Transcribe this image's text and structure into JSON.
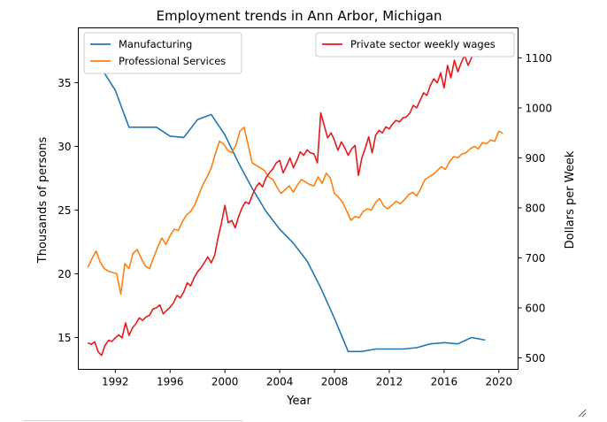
{
  "chart_data": {
    "type": "line",
    "title": "Employment trends in Ann Arbor, Michigan",
    "xlabel": "Year",
    "ylabel_left": "Thousands of persons",
    "ylabel_right": "Dollars per Week",
    "xlim": [
      1989.3,
      2021.4
    ],
    "ylim_left": [
      12.5,
      39.3
    ],
    "ylim_right": [
      477,
      1160
    ],
    "x_ticks": [
      1992,
      1996,
      2000,
      2004,
      2008,
      2012,
      2016,
      2020
    ],
    "y_ticks_left": [
      15,
      20,
      25,
      30,
      35
    ],
    "y_ticks_right": [
      500,
      600,
      700,
      800,
      900,
      1000,
      1100
    ],
    "grid": false,
    "legend_left_placement": "upper-left",
    "legend_right_placement": "upper-right",
    "series": [
      {
        "name": "Manufacturing",
        "axis": "left",
        "color": "#1f77b4",
        "x": [
          1990,
          1991,
          1992,
          1993,
          1994,
          1995,
          1996,
          1997,
          1998,
          1999,
          2000,
          2001,
          2002,
          2003,
          2004,
          2005,
          2006,
          2007,
          2008,
          2009,
          2010,
          2011,
          2012,
          2013,
          2014,
          2015,
          2016,
          2017,
          2018,
          2019
        ],
        "y": [
          37.6,
          36.1,
          34.4,
          31.5,
          31.5,
          31.5,
          30.8,
          30.7,
          32.1,
          32.5,
          30.9,
          28.7,
          26.7,
          24.9,
          23.5,
          22.4,
          21.0,
          18.9,
          16.5,
          13.9,
          13.9,
          14.1,
          14.1,
          14.1,
          14.2,
          14.5,
          14.6,
          14.5,
          15.0,
          14.8
        ]
      },
      {
        "name": "Professional Services",
        "axis": "left",
        "color": "#ff7f0e",
        "x": [
          1990.0,
          1990.3,
          1990.6,
          1990.9,
          1991.2,
          1991.5,
          1991.8,
          1992.1,
          1992.4,
          1992.7,
          1993.0,
          1993.3,
          1993.6,
          1993.9,
          1994.2,
          1994.5,
          1994.8,
          1995.1,
          1995.4,
          1995.7,
          1996.0,
          1996.3,
          1996.6,
          1996.9,
          1997.2,
          1997.5,
          1997.8,
          1998.1,
          1998.4,
          1998.7,
          1999.0,
          1999.3,
          1999.6,
          1999.9,
          2000.2,
          2000.5,
          2000.8,
          2001.1,
          2001.4,
          2001.7,
          2002.0,
          2002.3,
          2002.6,
          2002.9,
          2003.2,
          2003.5,
          2003.8,
          2004.1,
          2004.4,
          2004.7,
          2005.0,
          2005.3,
          2005.6,
          2005.9,
          2006.2,
          2006.5,
          2006.8,
          2007.1,
          2007.4,
          2007.7,
          2008.0,
          2008.3,
          2008.6,
          2008.9,
          2009.2,
          2009.5,
          2009.8,
          2010.1,
          2010.4,
          2010.7,
          2011.0,
          2011.3,
          2011.6,
          2011.9,
          2012.2,
          2012.5,
          2012.8,
          2013.1,
          2013.4,
          2013.7,
          2014.0,
          2014.3,
          2014.6,
          2014.9,
          2015.2,
          2015.5,
          2015.8,
          2016.1,
          2016.4,
          2016.7,
          2017.0,
          2017.3,
          2017.6,
          2017.9,
          2018.2,
          2018.5,
          2018.8,
          2019.1,
          2019.4,
          2019.7,
          2020.0,
          2020.3
        ],
        "y": [
          20.5,
          21.2,
          21.8,
          20.9,
          20.4,
          20.2,
          20.1,
          20.0,
          18.4,
          20.8,
          20.4,
          21.6,
          21.9,
          21.2,
          20.6,
          20.4,
          21.3,
          22.1,
          22.8,
          22.3,
          23.0,
          23.5,
          23.4,
          24.1,
          24.6,
          24.9,
          25.4,
          26.2,
          27.0,
          27.6,
          28.3,
          29.4,
          30.4,
          30.2,
          29.7,
          29.5,
          30.1,
          31.2,
          31.5,
          30.1,
          28.7,
          28.5,
          28.3,
          28.1,
          27.6,
          27.4,
          26.8,
          26.3,
          26.6,
          26.9,
          26.4,
          27.0,
          27.4,
          27.2,
          27.0,
          26.9,
          27.6,
          27.1,
          27.9,
          27.5,
          26.3,
          26.0,
          25.6,
          24.9,
          24.2,
          24.5,
          24.4,
          24.9,
          25.1,
          25.0,
          25.6,
          25.9,
          25.3,
          25.1,
          25.4,
          25.7,
          25.5,
          25.8,
          26.2,
          26.4,
          26.1,
          26.7,
          27.4,
          27.6,
          27.8,
          28.1,
          28.4,
          28.2,
          28.8,
          29.2,
          29.1,
          29.4,
          29.5,
          29.8,
          30.0,
          29.8,
          30.3,
          30.2,
          30.5,
          30.4,
          31.2,
          31.0
        ]
      },
      {
        "name": "Private sector weekly wages",
        "axis": "right",
        "color": "#e41a1c",
        "x": [
          1990.0,
          1990.25,
          1990.5,
          1990.75,
          1991.0,
          1991.25,
          1991.5,
          1991.75,
          1992.0,
          1992.25,
          1992.5,
          1992.75,
          1993.0,
          1993.25,
          1993.5,
          1993.75,
          1994.0,
          1994.25,
          1994.5,
          1994.75,
          1995.0,
          1995.25,
          1995.5,
          1995.75,
          1996.0,
          1996.25,
          1996.5,
          1996.75,
          1997.0,
          1997.25,
          1997.5,
          1997.75,
          1998.0,
          1998.25,
          1998.5,
          1998.75,
          1999.0,
          1999.25,
          1999.5,
          1999.75,
          2000.0,
          2000.25,
          2000.5,
          2000.75,
          2001.0,
          2001.25,
          2001.5,
          2001.75,
          2002.0,
          2002.25,
          2002.5,
          2002.75,
          2003.0,
          2003.25,
          2003.5,
          2003.75,
          2004.0,
          2004.25,
          2004.5,
          2004.75,
          2005.0,
          2005.25,
          2005.5,
          2005.75,
          2006.0,
          2006.25,
          2006.5,
          2006.75,
          2007.0,
          2007.25,
          2007.5,
          2007.75,
          2008.0,
          2008.25,
          2008.5,
          2008.75,
          2009.0,
          2009.25,
          2009.5,
          2009.75,
          2010.0,
          2010.25,
          2010.5,
          2010.75,
          2011.0,
          2011.25,
          2011.5,
          2011.75,
          2012.0,
          2012.25,
          2012.5,
          2012.75,
          2013.0,
          2013.25,
          2013.5,
          2013.75,
          2014.0,
          2014.25,
          2014.5,
          2014.75,
          2015.0,
          2015.25,
          2015.5,
          2015.75,
          2016.0,
          2016.25,
          2016.5,
          2016.75,
          2017.0,
          2017.25,
          2017.5,
          2017.75,
          2018.0,
          2018.25,
          2018.5,
          2018.75,
          2019.0,
          2019.25
        ],
        "y": [
          530,
          527,
          532,
          512,
          505,
          525,
          535,
          533,
          540,
          546,
          540,
          570,
          545,
          560,
          568,
          580,
          575,
          582,
          585,
          598,
          600,
          606,
          588,
          595,
          601,
          610,
          625,
          620,
          632,
          650,
          644,
          660,
          672,
          680,
          690,
          702,
          690,
          705,
          740,
          770,
          805,
          770,
          775,
          760,
          782,
          800,
          812,
          808,
          825,
          840,
          850,
          842,
          860,
          870,
          878,
          890,
          895,
          870,
          884,
          900,
          880,
          895,
          912,
          905,
          916,
          910,
          908,
          890,
          990,
          965,
          940,
          950,
          935,
          915,
          932,
          920,
          905,
          918,
          925,
          865,
          900,
          920,
          942,
          910,
          945,
          955,
          950,
          962,
          958,
          968,
          975,
          972,
          980,
          982,
          990,
          1005,
          1000,
          1015,
          1030,
          1025,
          1045,
          1058,
          1050,
          1070,
          1040,
          1085,
          1060,
          1095,
          1072,
          1090,
          1105,
          1085,
          1100,
          1120,
          1110,
          1140,
          1115,
          1150
        ]
      }
    ]
  }
}
